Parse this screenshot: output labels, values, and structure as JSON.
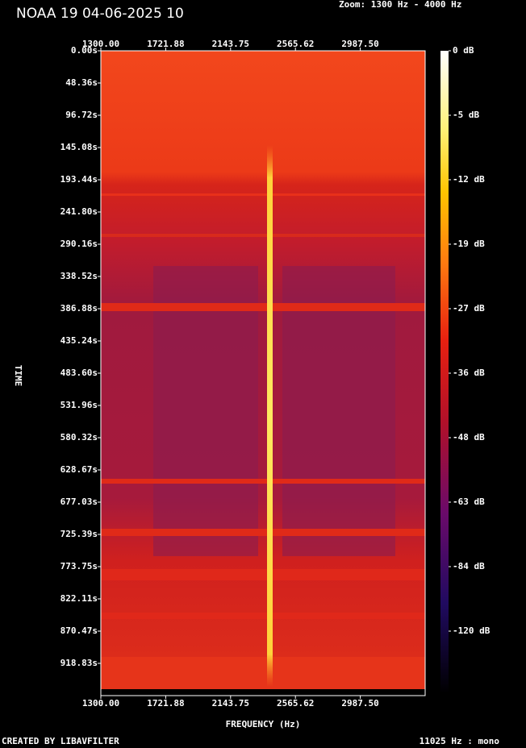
{
  "chart_data": {
    "type": "spectrogram",
    "title": "NOAA 19 04-06-2025 10",
    "subtitle": "Zoom: 1300 Hz - 4000 Hz",
    "xlabel": "FREQUENCY (Hz)",
    "ylabel": "TIME",
    "footer_left": "CREATED BY LIBAVFILTER",
    "footer_right": "11025 Hz : mono",
    "xlim": [
      1300,
      3409.375
    ],
    "xticks": [
      {
        "value": 1300,
        "label": "1300.00"
      },
      {
        "value": 1721.88,
        "label": "1721.88"
      },
      {
        "value": 2143.75,
        "label": "2143.75"
      },
      {
        "value": 2565.62,
        "label": "2565.62"
      },
      {
        "value": 2987.5,
        "label": "2987.50"
      }
    ],
    "ylim": [
      0,
      967.2
    ],
    "yticks": [
      {
        "value": 0,
        "label": "0.00s"
      },
      {
        "value": 48.36,
        "label": "48.36s"
      },
      {
        "value": 96.72,
        "label": "96.72s"
      },
      {
        "value": 145.08,
        "label": "145.08s"
      },
      {
        "value": 193.44,
        "label": "193.44s"
      },
      {
        "value": 241.8,
        "label": "241.80s"
      },
      {
        "value": 290.16,
        "label": "290.16s"
      },
      {
        "value": 338.52,
        "label": "338.52s"
      },
      {
        "value": 386.88,
        "label": "386.88s"
      },
      {
        "value": 435.24,
        "label": "435.24s"
      },
      {
        "value": 483.6,
        "label": "483.60s"
      },
      {
        "value": 531.96,
        "label": "531.96s"
      },
      {
        "value": 580.32,
        "label": "580.32s"
      },
      {
        "value": 628.67,
        "label": "628.67s"
      },
      {
        "value": 677.03,
        "label": "677.03s"
      },
      {
        "value": 725.39,
        "label": "725.39s"
      },
      {
        "value": 773.75,
        "label": "773.75s"
      },
      {
        "value": 822.11,
        "label": "822.11s"
      },
      {
        "value": 870.47,
        "label": "870.47s"
      },
      {
        "value": 918.83,
        "label": "918.83s"
      }
    ],
    "colorbar_ticks": [
      {
        "value": 0,
        "label": "0 dB"
      },
      {
        "value": -5,
        "label": "-5 dB"
      },
      {
        "value": -12,
        "label": "-12 dB"
      },
      {
        "value": -19,
        "label": "-19 dB"
      },
      {
        "value": -27,
        "label": "-27 dB"
      },
      {
        "value": -36,
        "label": "-36 dB"
      },
      {
        "value": -48,
        "label": "-48 dB"
      },
      {
        "value": -63,
        "label": "-63 dB"
      },
      {
        "value": -84,
        "label": "-84 dB"
      },
      {
        "value": -120,
        "label": "-120 dB"
      }
    ]
  }
}
